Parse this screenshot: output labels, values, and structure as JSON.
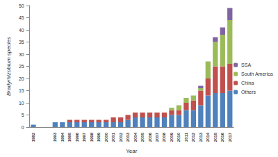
{
  "chart_data": {
    "type": "bar",
    "stacked": true,
    "x_label": "Year",
    "y_label": "Bradyrhizobium species",
    "categories": [
      "1982",
      null,
      null,
      "1993",
      "1994",
      "1995",
      "1996",
      "1997",
      "1998",
      "1999",
      "2000",
      "2001",
      "2002",
      "2003",
      "2004",
      "2005",
      "2006",
      "2007",
      "2008",
      "2009",
      "2010",
      "2011",
      "2012",
      "2013",
      "2014",
      "2015",
      "2016",
      "2017"
    ],
    "series": [
      {
        "name": "Others",
        "color": "#4f81bd",
        "values": [
          1,
          null,
          null,
          2,
          2,
          2,
          2,
          2,
          2,
          2,
          2,
          2,
          2,
          3,
          4,
          4,
          4,
          4,
          4,
          5,
          5,
          7,
          7,
          9,
          13,
          14,
          14,
          15
        ]
      },
      {
        "name": "China",
        "color": "#c0504d",
        "values": [
          0,
          null,
          null,
          0,
          0,
          1,
          1,
          1,
          1,
          1,
          1,
          2,
          2,
          2,
          2,
          2,
          2,
          2,
          2,
          2,
          2,
          3,
          4,
          6,
          7,
          11,
          11,
          11
        ]
      },
      {
        "name": "South America",
        "color": "#9bbb59",
        "values": [
          0,
          null,
          null,
          0,
          0,
          0,
          0,
          0,
          0,
          0,
          0,
          0,
          0,
          0,
          0,
          0,
          0,
          0,
          0,
          1,
          2,
          2,
          2,
          1,
          7,
          10,
          13,
          18
        ]
      },
      {
        "name": "SSA",
        "color": "#8064a2",
        "values": [
          0,
          null,
          null,
          0,
          0,
          0,
          0,
          0,
          0,
          0,
          0,
          0,
          0,
          0,
          0,
          0,
          0,
          0,
          0,
          0,
          0,
          0,
          0,
          1,
          0,
          2,
          3,
          5
        ]
      }
    ],
    "ylim": [
      0,
      50
    ],
    "yticks": [
      0,
      5,
      10,
      15,
      20,
      25,
      30,
      35,
      40,
      45,
      50
    ],
    "grid": false,
    "legend": "right"
  }
}
